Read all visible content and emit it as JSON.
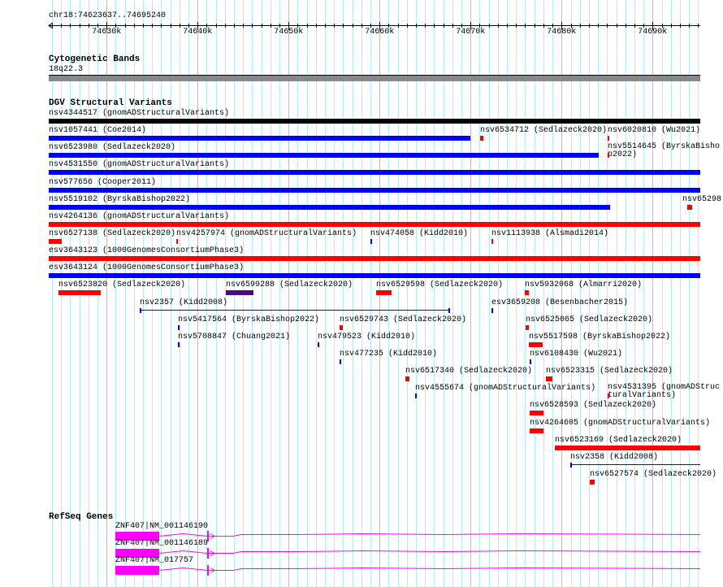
{
  "view": {
    "location": "chr18:74623637..74695240",
    "start": 74623637,
    "end": 74695240
  },
  "ruler": {
    "ticks": [
      {
        "pos": 74630000,
        "label": "74630k"
      },
      {
        "pos": 74640000,
        "label": "74640k"
      },
      {
        "pos": 74650000,
        "label": "74650k"
      },
      {
        "pos": 74660000,
        "label": "74660k"
      },
      {
        "pos": 74670000,
        "label": "74670k"
      },
      {
        "pos": 74680000,
        "label": "74680k"
      },
      {
        "pos": 74690000,
        "label": "74690k"
      }
    ]
  },
  "colors": {
    "grid_minor": "#b0eef4",
    "grid_major": "#8cc8ec",
    "red": "#ff0000",
    "blue": "#0000ff",
    "black": "#000000",
    "purple": "#4b0a85",
    "magenta": "#ff00ff",
    "band": "#888888"
  },
  "cytoband": {
    "title": "Cytogenetic Bands",
    "band": "18q22.3"
  },
  "dgv": {
    "title": "DGV Structural Variants",
    "rows": [
      [
        {
          "id": "nsv4344517",
          "source": "gnomADStructuralVariants",
          "start": 74623637,
          "end": 74695240,
          "color": "black"
        }
      ],
      [
        {
          "id": "nsv1057441",
          "source": "Coe2014",
          "start": 74623637,
          "end": 74669973,
          "color": "blue"
        },
        {
          "id": "nsv6534712",
          "source": "Sedlazeck2020",
          "start": 74671045,
          "end": 74671402,
          "color": "red"
        },
        {
          "id": "nsv6020810",
          "source": "Wu2021",
          "start": 74685062,
          "end": 74685241,
          "color": "red"
        }
      ],
      [
        {
          "id": "nsv6523980",
          "source": "Sedlazeck2020",
          "start": 74623637,
          "end": 74684080,
          "color": "blue"
        },
        {
          "id": "nsv5514645",
          "source": "ByrskaBishop2022",
          "start": 74685062,
          "end": 74685241,
          "color": "red"
        }
      ],
      [
        {
          "id": "nsv4531550",
          "source": "gnomADStructuralVariants",
          "start": 74623637,
          "end": 74695240,
          "color": "blue"
        }
      ],
      [
        {
          "id": "nsv577656",
          "source": "Cooper2011",
          "start": 74623637,
          "end": 74695240,
          "color": "blue"
        }
      ],
      [
        {
          "id": "nsv5519102",
          "source": "ByrskaBishop2022",
          "start": 74623637,
          "end": 74685330,
          "color": "blue"
        },
        {
          "id": "nsv65298",
          "source": "",
          "start": 74693811,
          "end": 74694346,
          "color": "red"
        }
      ],
      [
        {
          "id": "nsv4264136",
          "source": "gnomADStructuralVariants",
          "start": 74623637,
          "end": 74695240,
          "color": "red"
        }
      ],
      [
        {
          "id": "nsv6527138",
          "source": "Sedlazeck2020",
          "start": 74623637,
          "end": 74625065,
          "color": "red"
        },
        {
          "id": "nsv4257974",
          "source": "gnomADStructuralVariants",
          "start": 74637654,
          "end": 74637833,
          "color": "red"
        },
        {
          "id": "nsv474058",
          "source": "Kidd2010",
          "start": 74658992,
          "end": 74659171,
          "color": "blue"
        },
        {
          "id": "nsv1113938",
          "source": "Alsmadi2014",
          "start": 74672295,
          "end": 74672474,
          "color": "red"
        }
      ],
      [
        {
          "id": "esv3643123",
          "source": "1000GenomesConsortiumPhase3",
          "start": 74623637,
          "end": 74695240,
          "color": "red"
        }
      ],
      [
        {
          "id": "esv3643124",
          "source": "1000GenomesConsortiumPhase3",
          "start": 74623637,
          "end": 74695240,
          "color": "blue"
        }
      ],
      [
        {
          "id": "nsv6523820",
          "source": "Sedlazeck2020",
          "start": 74624708,
          "end": 74629351,
          "color": "red"
        },
        {
          "id": "nsv6599288",
          "source": "Sedlazeck2020",
          "start": 74643100,
          "end": 74646136,
          "color": "purple"
        },
        {
          "id": "nsv6529598",
          "source": "Sedlazeck2020",
          "start": 74659617,
          "end": 74661313,
          "color": "red"
        },
        {
          "id": "nsv5932068",
          "source": "Almarri2020",
          "start": 74675955,
          "end": 74676402,
          "color": "red"
        }
      ],
      [
        {
          "id": "nsv2357",
          "source": "Kidd2008",
          "start": 74633636,
          "end": 74667652,
          "color": "blue",
          "style": "line"
        },
        {
          "id": "esv3659208",
          "source": "Besenbacher2015",
          "start": 74672295,
          "end": 74672474,
          "color": "blue"
        }
      ],
      [
        {
          "id": "nsv5417564",
          "source": "ByrskaBishop2022",
          "start": 74637833,
          "end": 74638012,
          "color": "blue"
        },
        {
          "id": "nsv6529743",
          "source": "Sedlazeck2020",
          "start": 74655599,
          "end": 74655957,
          "color": "red"
        },
        {
          "id": "nsv6525065",
          "source": "Sedlazeck2020",
          "start": 74676045,
          "end": 74676402,
          "color": "red"
        }
      ],
      [
        {
          "id": "nsv5708847",
          "source": "Chuang2021",
          "start": 74637833,
          "end": 74638012,
          "color": "blue"
        },
        {
          "id": "nsv479523",
          "source": "Kidd2010",
          "start": 74653189,
          "end": 74653367,
          "color": "blue"
        },
        {
          "id": "nsv5517598",
          "source": "ByrskaBishop2022",
          "start": 74676402,
          "end": 74677919,
          "color": "red"
        }
      ],
      [
        {
          "id": "nsv477235",
          "source": "Kidd2010",
          "start": 74655599,
          "end": 74655778,
          "color": "blue"
        },
        {
          "id": "nsv6108430",
          "source": "Wu2021",
          "start": 74676491,
          "end": 74676670,
          "color": "blue"
        }
      ],
      [
        {
          "id": "nsv6517340",
          "source": "Sedlazeck2020",
          "start": 74662831,
          "end": 74663277,
          "color": "red"
        },
        {
          "id": "nsv6523315",
          "source": "Sedlazeck2020",
          "start": 74678276,
          "end": 74678990,
          "color": "red"
        }
      ],
      [
        {
          "id": "nsv4555674",
          "source": "gnomADStructuralVariants",
          "start": 74663902,
          "end": 74664081,
          "color": "blue"
        },
        {
          "id": "nsv4531395",
          "source": "gnomADStructuralVariants",
          "start": 74685062,
          "end": 74685241,
          "color": "red"
        }
      ],
      [
        {
          "id": "nsv6528593",
          "source": "Sedlazeck2020",
          "start": 74676491,
          "end": 74678008,
          "color": "red"
        }
      ],
      [
        {
          "id": "nsv4264605",
          "source": "gnomADStructuralVariants",
          "start": 74676491,
          "end": 74678008,
          "color": "red"
        }
      ],
      [
        {
          "id": "nsv6523169",
          "source": "Sedlazeck2020",
          "start": 74679258,
          "end": 74695240,
          "color": "red"
        }
      ],
      [
        {
          "id": "nsv2358",
          "source": "Kidd2008",
          "start": 74680955,
          "end": 74695240,
          "color": "blue",
          "style": "line"
        }
      ],
      [
        {
          "id": "nsv6527574",
          "source": "Sedlazeck2020",
          "start": 74683097,
          "end": 74683633,
          "color": "red"
        }
      ]
    ]
  },
  "refseq": {
    "title": "RefSeq Genes",
    "transcripts": [
      {
        "label": "ZNF407|NM_001146190",
        "start": 74630958,
        "end": 74695240,
        "exons": [
          [
            74630958,
            74635779
          ],
          [
            74641046,
            74641224
          ]
        ]
      },
      {
        "label": "ZNF407|NM_001146189",
        "start": 74630958,
        "end": 74695240,
        "exons": [
          [
            74630958,
            74635779
          ],
          [
            74641046,
            74641224
          ]
        ]
      },
      {
        "label": "ZNF407|NM_017757",
        "start": 74630958,
        "end": 74695240,
        "exons": [
          [
            74630958,
            74635779
          ],
          [
            74641046,
            74641224
          ]
        ]
      }
    ]
  }
}
